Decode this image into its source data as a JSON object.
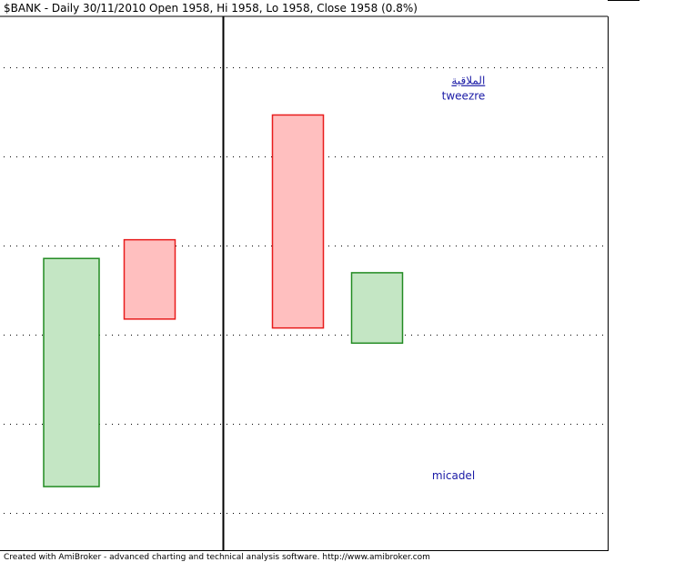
{
  "chart_data": {
    "type": "candlestick",
    "title": "$BANK - Daily 30/11/2010 Open 1958, Hi 1958, Lo 1958, Close 1958 (0.8%)",
    "ylim": [
      0,
      600
    ],
    "grid": true,
    "candles": [
      {
        "open": 336,
        "close": 80,
        "color": "#228b22",
        "fill": "#c4e6c4"
      },
      {
        "open": 357,
        "close": 268,
        "color": "#e81c1c",
        "fill": "#ffbfbf"
      },
      {
        "open": 497,
        "close": 258,
        "color": "#e81c1c",
        "fill": "#ffbfbf"
      },
      {
        "open": 241,
        "close": 320,
        "color": "#228b22",
        "fill": "#c4e6c4"
      }
    ],
    "annotations": [
      {
        "text": "الملاقية",
        "x": 2.9,
        "y": 531,
        "anchor": "end",
        "underline": true
      },
      {
        "text": "tweezre",
        "x": 2.9,
        "y": 514,
        "anchor": "end",
        "underline": false
      },
      {
        "text": "micadel",
        "x": 2.5,
        "y": 88,
        "anchor": "middle",
        "underline": false
      }
    ]
  },
  "footer": "Created with AmiBroker - advanced charting and technical analysis software. http://www.amibroker.com",
  "colors": {
    "grid": "#000000",
    "axis": "#000000",
    "annotation": "#1a1aa6"
  }
}
